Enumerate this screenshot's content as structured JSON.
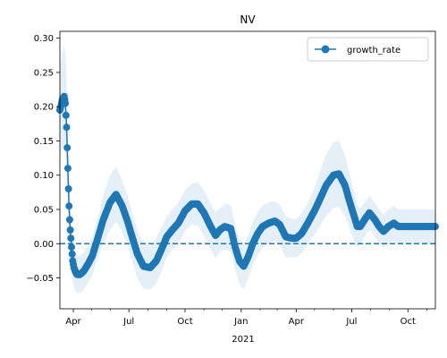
{
  "chart_data": {
    "type": "line",
    "title": "NV",
    "xlabel": "",
    "ylabel": "",
    "x_tick_labels": [
      "Apr",
      "Jul",
      "Oct",
      "Jan",
      "Apr",
      "Jul",
      "Oct"
    ],
    "x_year_label": "2021",
    "xlim": [
      "2020-03-10",
      "2021-11-15"
    ],
    "ylim": [
      -0.095,
      0.31
    ],
    "y_ticks": [
      -0.05,
      0.0,
      0.05,
      0.1,
      0.15,
      0.2,
      0.25,
      0.3
    ],
    "y_tick_labels": [
      "−0.05",
      "0.00",
      "0.05",
      "0.10",
      "0.15",
      "0.20",
      "0.25",
      "0.30"
    ],
    "legend": {
      "position": "top-right",
      "entries": [
        "growth_rate"
      ]
    },
    "reference_line": {
      "y": 0.0,
      "style": "dashed"
    },
    "colors": {
      "series": "#1f77b4",
      "band": "#dce9f5"
    },
    "series": [
      {
        "name": "growth_rate",
        "x": [
          "2020-03-10",
          "2020-03-14",
          "2020-03-17",
          "2020-03-19",
          "2020-03-21",
          "2020-03-22",
          "2020-03-23",
          "2020-03-24",
          "2020-03-25",
          "2020-03-26",
          "2020-03-27",
          "2020-03-28",
          "2020-03-29",
          "2020-03-30",
          "2020-03-31",
          "2020-04-02",
          "2020-04-04",
          "2020-04-07",
          "2020-04-12",
          "2020-04-18",
          "2020-04-25",
          "2020-05-02",
          "2020-05-10",
          "2020-05-20",
          "2020-05-31",
          "2020-06-10",
          "2020-06-20",
          "2020-06-28",
          "2020-07-03",
          "2020-07-08",
          "2020-07-15",
          "2020-07-25",
          "2020-08-05",
          "2020-08-15",
          "2020-08-25",
          "2020-09-01",
          "2020-09-10",
          "2020-09-20",
          "2020-10-01",
          "2020-10-12",
          "2020-10-22",
          "2020-11-01",
          "2020-11-12",
          "2020-11-20",
          "2020-11-27",
          "2020-12-05",
          "2020-12-15",
          "2020-12-22",
          "2020-12-29",
          "2021-01-05",
          "2021-01-12",
          "2021-01-20",
          "2021-01-28",
          "2021-02-05",
          "2021-02-15",
          "2021-02-25",
          "2021-03-05",
          "2021-03-15",
          "2021-03-25",
          "2021-04-01",
          "2021-04-10",
          "2021-04-20",
          "2021-05-01",
          "2021-05-10",
          "2021-05-20",
          "2021-06-01",
          "2021-06-10",
          "2021-06-20",
          "2021-06-28",
          "2021-07-05",
          "2021-07-10",
          "2021-07-15",
          "2021-07-22",
          "2021-07-30",
          "2021-08-08",
          "2021-08-15",
          "2021-08-22",
          "2021-08-30",
          "2021-09-08",
          "2021-09-15",
          "2021-09-22",
          "2021-10-01",
          "2021-10-10",
          "2021-10-20",
          "2021-10-28",
          "2021-11-05",
          "2021-11-15"
        ],
        "y": [
          0.195,
          0.21,
          0.215,
          0.205,
          0.17,
          0.14,
          0.11,
          0.08,
          0.055,
          0.035,
          0.02,
          0.008,
          -0.005,
          -0.015,
          -0.025,
          -0.035,
          -0.04,
          -0.045,
          -0.045,
          -0.04,
          -0.03,
          -0.018,
          0.005,
          0.035,
          0.06,
          0.072,
          0.055,
          0.035,
          0.02,
          0.005,
          -0.015,
          -0.033,
          -0.035,
          -0.025,
          -0.005,
          0.01,
          0.02,
          0.03,
          0.048,
          0.058,
          0.058,
          0.045,
          0.025,
          0.012,
          0.02,
          0.025,
          0.022,
          -0.005,
          -0.025,
          -0.033,
          -0.02,
          0.0,
          0.015,
          0.025,
          0.03,
          0.033,
          0.028,
          0.01,
          0.008,
          0.008,
          0.015,
          0.03,
          0.048,
          0.065,
          0.085,
          0.1,
          0.102,
          0.085,
          0.06,
          0.04,
          0.025,
          0.025,
          0.035,
          0.045,
          0.035,
          0.025,
          0.018,
          0.025,
          0.03,
          0.025,
          0.025,
          0.025,
          0.025,
          0.025,
          0.025,
          0.025,
          0.025
        ]
      }
    ],
    "band": {
      "upper": [
        0.26,
        0.28,
        0.29,
        0.275,
        0.24,
        0.205,
        0.17,
        0.135,
        0.105,
        0.08,
        0.06,
        0.045,
        0.03,
        0.018,
        0.006,
        -0.006,
        -0.012,
        -0.018,
        -0.018,
        -0.013,
        -0.003,
        0.01,
        0.035,
        0.07,
        0.1,
        0.112,
        0.093,
        0.072,
        0.056,
        0.04,
        0.02,
        0.0,
        -0.003,
        0.008,
        0.027,
        0.04,
        0.05,
        0.06,
        0.078,
        0.088,
        0.09,
        0.078,
        0.058,
        0.046,
        0.052,
        0.058,
        0.056,
        0.028,
        0.008,
        0.0,
        0.012,
        0.032,
        0.046,
        0.056,
        0.06,
        0.062,
        0.057,
        0.04,
        0.036,
        0.036,
        0.044,
        0.06,
        0.082,
        0.105,
        0.13,
        0.148,
        0.15,
        0.13,
        0.1,
        0.075,
        0.055,
        0.052,
        0.06,
        0.07,
        0.06,
        0.05,
        0.042,
        0.05,
        0.055,
        0.05,
        0.05,
        0.05,
        0.05,
        0.05,
        0.05,
        0.05,
        0.05
      ],
      "lower": [
        0.13,
        0.14,
        0.14,
        0.135,
        0.1,
        0.075,
        0.05,
        0.025,
        0.005,
        -0.01,
        -0.02,
        -0.03,
        -0.04,
        -0.048,
        -0.056,
        -0.064,
        -0.068,
        -0.072,
        -0.072,
        -0.067,
        -0.057,
        -0.046,
        -0.025,
        0.0,
        0.02,
        0.032,
        0.017,
        -0.002,
        -0.016,
        -0.03,
        -0.05,
        -0.066,
        -0.067,
        -0.058,
        -0.037,
        -0.02,
        -0.01,
        0.0,
        0.018,
        0.028,
        0.026,
        0.012,
        -0.008,
        -0.022,
        -0.012,
        -0.008,
        -0.012,
        -0.038,
        -0.058,
        -0.066,
        -0.052,
        -0.032,
        -0.016,
        -0.006,
        0.0,
        0.004,
        -0.001,
        -0.02,
        -0.02,
        -0.02,
        -0.014,
        0.0,
        0.014,
        0.025,
        0.04,
        0.052,
        0.054,
        0.04,
        0.02,
        0.005,
        -0.005,
        -0.002,
        0.01,
        0.02,
        0.01,
        0.0,
        -0.006,
        0.0,
        0.005,
        0.0,
        0.0,
        0.0,
        0.0,
        0.0,
        0.0,
        0.0,
        0.0
      ]
    }
  }
}
